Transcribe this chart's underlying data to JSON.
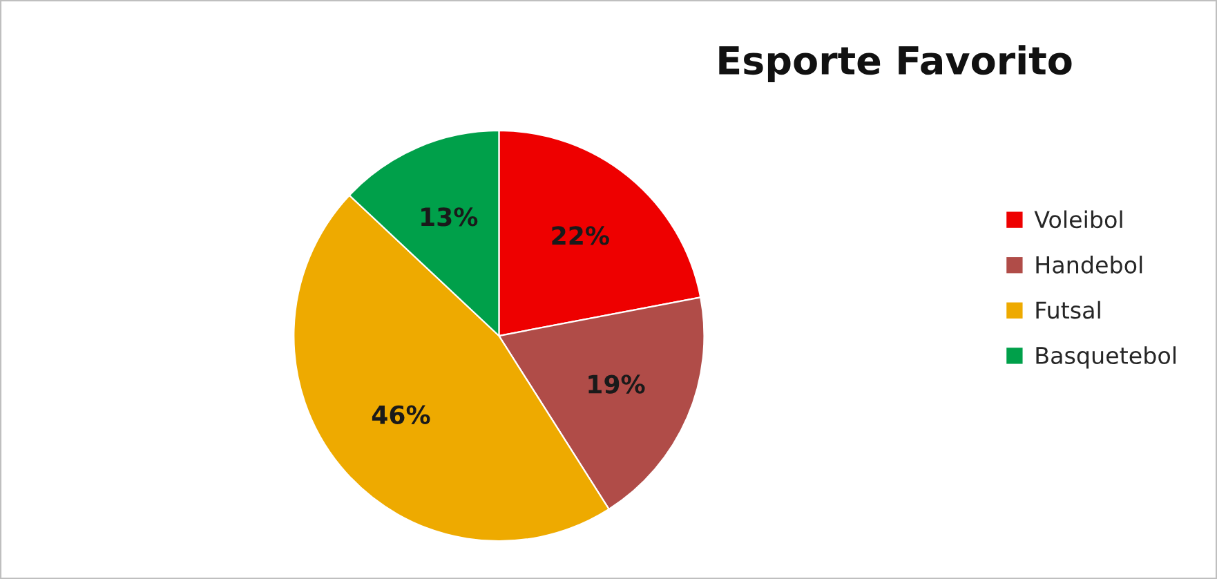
{
  "chart_data": {
    "type": "pie",
    "title": "Esporte Favorito",
    "categories": [
      "Voleibol",
      "Handebol",
      "Futsal",
      "Basquetebol"
    ],
    "values": [
      22,
      19,
      46,
      13
    ],
    "value_labels": [
      "22%",
      "19%",
      "46%",
      "13%"
    ],
    "colors": [
      "#ee0000",
      "#b04c48",
      "#eeaa00",
      "#00a04a"
    ],
    "legend": "right"
  }
}
